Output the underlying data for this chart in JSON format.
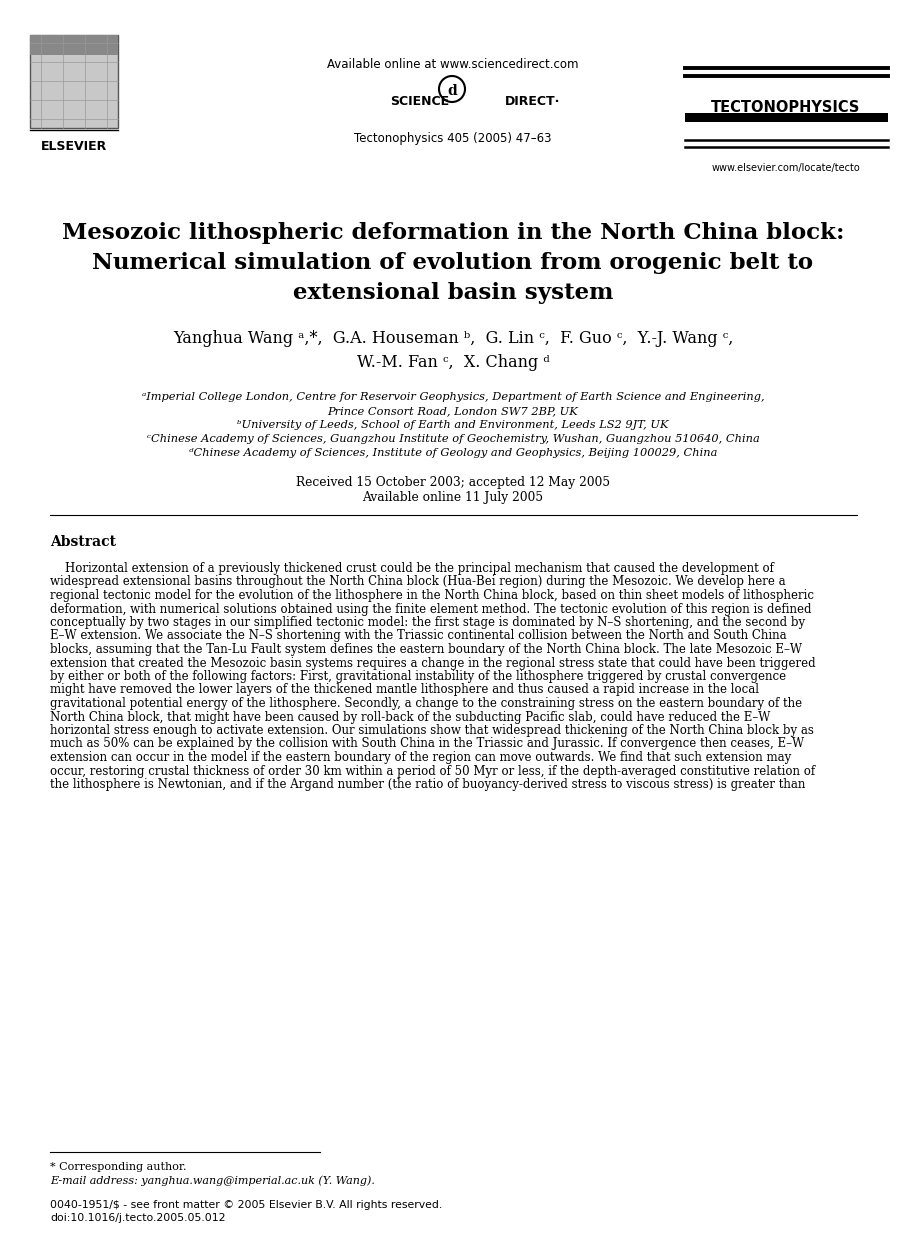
{
  "bg_color": "#ffffff",
  "header_available_online": "Available online at www.sciencedirect.com",
  "header_journal_line": "Tectonophysics 405 (2005) 47–63",
  "journal_name": "TECTONOPHYSICS",
  "elsevier_text": "ELSEVIER",
  "title_line1": "Mesozoic lithospheric deformation in the North China block:",
  "title_line2": "Numerical simulation of evolution from orogenic belt to",
  "title_line3": "extensional basin system",
  "authors_line1": "Yanghua Wang ᵃ,*,  G.A. Houseman ᵇ,  G. Lin ᶜ,  F. Guo ᶜ,  Y.-J. Wang ᶜ,",
  "authors_line2": "W.-M. Fan ᶜ,  X. Chang ᵈ",
  "affil_a": "ᵃImperial College London, Centre for Reservoir Geophysics, Department of Earth Science and Engineering,",
  "affil_a2": "Prince Consort Road, London SW7 2BP, UK",
  "affil_b": "ᵇUniversity of Leeds, School of Earth and Environment, Leeds LS2 9JT, UK",
  "affil_c": "ᶜChinese Academy of Sciences, Guangzhou Institute of Geochemistry, Wushan, Guangzhou 510640, China",
  "affil_d": "ᵈChinese Academy of Sciences, Institute of Geology and Geophysics, Beijing 100029, China",
  "dates_line1": "Received 15 October 2003; accepted 12 May 2005",
  "dates_line2": "Available online 11 July 2005",
  "abstract_heading": "Abstract",
  "abstract_lines": [
    "    Horizontal extension of a previously thickened crust could be the principal mechanism that caused the development of",
    "widespread extensional basins throughout the North China block (Hua-Bei region) during the Mesozoic. We develop here a",
    "regional tectonic model for the evolution of the lithosphere in the North China block, based on thin sheet models of lithospheric",
    "deformation, with numerical solutions obtained using the finite element method. The tectonic evolution of this region is defined",
    "conceptually by two stages in our simplified tectonic model: the first stage is dominated by N–S shortening, and the second by",
    "E–W extension. We associate the N–S shortening with the Triassic continental collision between the North and South China",
    "blocks, assuming that the Tan-Lu Fault system defines the eastern boundary of the North China block. The late Mesozoic E–W",
    "extension that created the Mesozoic basin systems requires a change in the regional stress state that could have been triggered",
    "by either or both of the following factors: First, gravitational instability of the lithosphere triggered by crustal convergence",
    "might have removed the lower layers of the thickened mantle lithosphere and thus caused a rapid increase in the local",
    "gravitational potential energy of the lithosphere. Secondly, a change to the constraining stress on the eastern boundary of the",
    "North China block, that might have been caused by roll-back of the subducting Pacific slab, could have reduced the E–W",
    "horizontal stress enough to activate extension. Our simulations show that widespread thickening of the North China block by as",
    "much as 50% can be explained by the collision with South China in the Triassic and Jurassic. If convergence then ceases, E–W",
    "extension can occur in the model if the eastern boundary of the region can move outwards. We find that such extension may",
    "occur, restoring crustal thickness of order 30 km within a period of 50 Myr or less, if the depth-averaged constitutive relation of",
    "the lithosphere is Newtonian, and if the Argand number (the ratio of buoyancy-derived stress to viscous stress) is greater than"
  ],
  "footer_note": "* Corresponding author.",
  "footer_email": "E-mail address: yanghua.wang@imperial.ac.uk (Y. Wang).",
  "footer_copyright": "0040-1951/$ - see front matter © 2005 Elsevier B.V. All rights reserved.",
  "footer_doi": "doi:10.1016/j.tecto.2005.05.012",
  "www_text": "www.elsevier.com/locate/tecto",
  "sciencedirect_left": "SCIENCE",
  "sciencedirect_right": "DIRECT·"
}
